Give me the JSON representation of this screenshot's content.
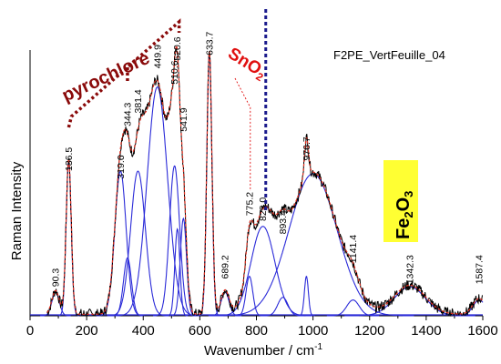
{
  "chart_data": {
    "type": "line",
    "title": "",
    "xlabel": "Wavenumber / cm",
    "xlabel_superscript": "-1",
    "ylabel": "Raman  Intensity",
    "xlim": [
      0,
      1600
    ],
    "ylim": [
      0,
      100
    ],
    "xticks": [
      0,
      200,
      400,
      600,
      800,
      1000,
      1200,
      1400,
      1600
    ],
    "y_tick_labels": false,
    "grid": false,
    "sample_label": "F2PE_VertFeuille_04",
    "annotations": {
      "pyrochlore": "pyrochlore",
      "sno2_main": "SnO",
      "sno2_sub": "2",
      "fe2o3_a": "Fe",
      "fe2o3_b": "2",
      "fe2o3_c": "O",
      "fe2o3_d": "3"
    },
    "sno2_marker_x": 833,
    "colors": {
      "measured": "#000000",
      "fit": "#e03020",
      "components": "#2a2ad8",
      "pyrochlore": "#8a0a0a",
      "sno2": "#e01010",
      "sno2_marker": "#1a1a8c",
      "fe2o3_box": "#ffff33"
    },
    "peak_labels": [
      {
        "label": "90.3",
        "x": 90.3,
        "y": 11
      },
      {
        "label": "136.5",
        "x": 136.5,
        "y": 55
      },
      {
        "label": "319.6",
        "x": 319.6,
        "y": 52
      },
      {
        "label": "344.3",
        "x": 344.3,
        "y": 72
      },
      {
        "label": "381.4",
        "x": 381.4,
        "y": 77
      },
      {
        "label": "449.9",
        "x": 449.9,
        "y": 94
      },
      {
        "label": "510.6",
        "x": 510.6,
        "y": 88
      },
      {
        "label": "520.6",
        "x": 520.6,
        "y": 97
      },
      {
        "label": "541.9",
        "x": 541.9,
        "y": 70
      },
      {
        "label": "633.7",
        "x": 633.7,
        "y": 99
      },
      {
        "label": "689.2",
        "x": 689.2,
        "y": 14
      },
      {
        "label": "775.2",
        "x": 775.2,
        "y": 38
      },
      {
        "label": "823.0",
        "x": 823.0,
        "y": 36
      },
      {
        "label": "893.4",
        "x": 893.4,
        "y": 31
      },
      {
        "label": "976.7",
        "x": 976.7,
        "y": 59
      },
      {
        "label": "1141.4",
        "x": 1141.4,
        "y": 20
      },
      {
        "label": "1342.3",
        "x": 1342.3,
        "y": 12
      },
      {
        "label": "1587.4",
        "x": 1587.4,
        "y": 12
      }
    ],
    "components": [
      {
        "center": 90.3,
        "height": 9,
        "width": 13
      },
      {
        "center": 136.5,
        "height": 59,
        "width": 9
      },
      {
        "center": 319.6,
        "height": 55,
        "width": 20
      },
      {
        "center": 344.3,
        "height": 22,
        "width": 14
      },
      {
        "center": 381.4,
        "height": 55,
        "width": 26
      },
      {
        "center": 449.9,
        "height": 87,
        "width": 36
      },
      {
        "center": 510.6,
        "height": 57,
        "width": 18
      },
      {
        "center": 520.6,
        "height": 33,
        "width": 9
      },
      {
        "center": 541.9,
        "height": 37,
        "width": 11
      },
      {
        "center": 633.7,
        "height": 100,
        "width": 9
      },
      {
        "center": 689.2,
        "height": 9,
        "width": 14
      },
      {
        "center": 775.2,
        "height": 15,
        "width": 12
      },
      {
        "center": 823.0,
        "height": 34,
        "width": 42
      },
      {
        "center": 893.4,
        "height": 7,
        "width": 18
      },
      {
        "center": 976.7,
        "height": 15,
        "width": 7
      },
      {
        "center": 1000,
        "height": 54,
        "width": 85
      },
      {
        "center": 1141.4,
        "height": 6,
        "width": 22
      },
      {
        "center": 1342.3,
        "height": 11,
        "width": 55
      },
      {
        "center": 1587.4,
        "height": 6,
        "width": 22
      }
    ]
  }
}
